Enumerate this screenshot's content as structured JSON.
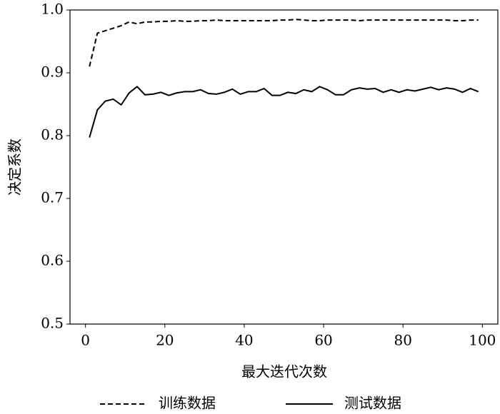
{
  "chart_data": {
    "type": "line",
    "x_label": "最大迭代次数",
    "y_label": "决定系数",
    "x": [
      1,
      3,
      5,
      7,
      9,
      11,
      13,
      15,
      17,
      19,
      21,
      23,
      25,
      27,
      29,
      31,
      33,
      35,
      37,
      39,
      41,
      43,
      45,
      47,
      49,
      51,
      53,
      55,
      57,
      59,
      61,
      63,
      65,
      67,
      69,
      71,
      73,
      75,
      77,
      79,
      81,
      83,
      85,
      87,
      89,
      91,
      93,
      95,
      97,
      99
    ],
    "series": [
      {
        "name": "训练数据",
        "color": "#000000",
        "style": "dashed",
        "values": [
          0.91,
          0.963,
          0.967,
          0.971,
          0.975,
          0.981,
          0.978,
          0.981,
          0.981,
          0.982,
          0.982,
          0.983,
          0.982,
          0.982,
          0.983,
          0.983,
          0.984,
          0.983,
          0.983,
          0.983,
          0.983,
          0.983,
          0.983,
          0.983,
          0.984,
          0.984,
          0.985,
          0.984,
          0.983,
          0.983,
          0.984,
          0.984,
          0.984,
          0.984,
          0.983,
          0.984,
          0.984,
          0.984,
          0.984,
          0.984,
          0.984,
          0.984,
          0.984,
          0.984,
          0.984,
          0.984,
          0.983,
          0.983,
          0.984,
          0.984
        ]
      },
      {
        "name": "测试数据",
        "color": "#000000",
        "style": "solid",
        "values": [
          0.797,
          0.841,
          0.855,
          0.858,
          0.849,
          0.868,
          0.878,
          0.865,
          0.866,
          0.869,
          0.864,
          0.868,
          0.87,
          0.87,
          0.873,
          0.867,
          0.866,
          0.869,
          0.874,
          0.866,
          0.87,
          0.87,
          0.875,
          0.864,
          0.864,
          0.869,
          0.867,
          0.873,
          0.87,
          0.878,
          0.873,
          0.865,
          0.865,
          0.873,
          0.876,
          0.874,
          0.875,
          0.869,
          0.873,
          0.869,
          0.873,
          0.871,
          0.874,
          0.877,
          0.873,
          0.876,
          0.874,
          0.869,
          0.875,
          0.87
        ]
      }
    ],
    "xlim": [
      -3.9,
      103.9
    ],
    "xticks": [
      0,
      20,
      40,
      60,
      80,
      100
    ],
    "ylim": [
      0.5,
      1.0
    ],
    "yticks": [
      {
        "value": 0.5,
        "label": "0.5"
      },
      {
        "value": 0.6,
        "label": "0.6"
      },
      {
        "value": 0.7,
        "label": "0.7"
      },
      {
        "value": 0.8,
        "label": "0.8"
      },
      {
        "value": 0.9,
        "label": "0.9"
      },
      {
        "value": 1.0,
        "label": "1.0"
      }
    ],
    "legend": "bottom"
  }
}
